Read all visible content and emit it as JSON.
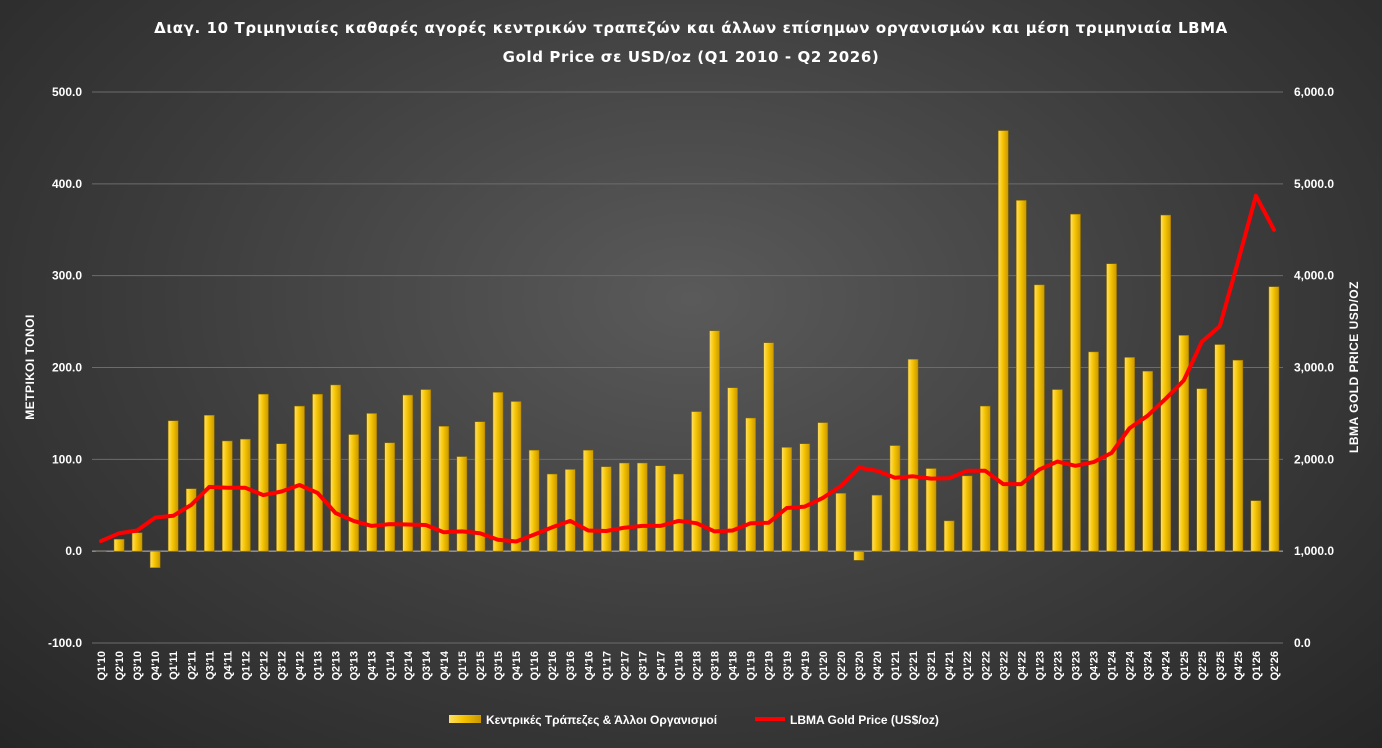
{
  "chart_data": {
    "type": "bar+line",
    "title_line1": "Διαγ. 10 Τριμηνιαίες καθαρές αγορές κεντρικών τραπεζών και άλλων επίσημων οργανισμών και μέση τριμηνιαία LBMA",
    "title_line2": "Gold Price σε USD/oz (Q1 2010 - Q2 2026)",
    "ylabel": "ΜΕΤΡΙΚΟΙ ΤΟΝΟΙ",
    "y2label": "LBMA GOLD PRICE USD/OZ",
    "ylim": [
      -100,
      500
    ],
    "y2lim": [
      0,
      6000
    ],
    "yticks": [
      "500.0",
      "400.0",
      "300.0",
      "200.0",
      "100.0",
      "0.0",
      "-100.0"
    ],
    "y2ticks": [
      "6,000.0",
      "5,000.0",
      "4,000.0",
      "3,000.0",
      "2,000.0",
      "1,000.0",
      "0.0"
    ],
    "grid": true,
    "legend_position": "bottom",
    "colors": {
      "bar": "#e8b400",
      "bar_light": "#ffe066",
      "line": "#ff0000"
    },
    "categories": [
      "Q1'10",
      "Q2'10",
      "Q3'10",
      "Q4'10",
      "Q1'11",
      "Q2'11",
      "Q3'11",
      "Q4'11",
      "Q1'12",
      "Q2'12",
      "Q3'12",
      "Q4'12",
      "Q1'13",
      "Q2'13",
      "Q3'13",
      "Q4'13",
      "Q1'14",
      "Q2'14",
      "Q3'14",
      "Q4'14",
      "Q1'15",
      "Q2'15",
      "Q3'15",
      "Q4'15",
      "Q1'16",
      "Q2'16",
      "Q3'16",
      "Q4'16",
      "Q1'17",
      "Q2'17",
      "Q3'17",
      "Q4'17",
      "Q1'18",
      "Q2'18",
      "Q3'18",
      "Q4'18",
      "Q1'19",
      "Q2'19",
      "Q3'19",
      "Q4'19",
      "Q1'20",
      "Q2'20",
      "Q3'20",
      "Q4'20",
      "Q1'21",
      "Q2'21",
      "Q3'21",
      "Q4'21",
      "Q1'22",
      "Q2'22",
      "Q3'22",
      "Q4'22",
      "Q1'23",
      "Q2'23",
      "Q3'23",
      "Q4'23",
      "Q1'24",
      "Q2'24",
      "Q3'24",
      "Q4'24",
      "Q1'25",
      "Q2'25",
      "Q3'25",
      "Q4'25",
      "Q1'26",
      "Q2'26"
    ],
    "series": [
      {
        "name": "Κεντρικές Τράπεζες & Άλλοι Οργανισμοί",
        "type": "bar",
        "axis": "left",
        "values": [
          0,
          13,
          20,
          -18,
          142,
          68,
          148,
          120,
          122,
          171,
          117,
          158,
          171,
          181,
          127,
          150,
          118,
          170,
          176,
          136,
          103,
          141,
          173,
          163,
          110,
          84,
          89,
          110,
          92,
          96,
          96,
          93,
          84,
          152,
          240,
          178,
          145,
          227,
          113,
          117,
          140,
          63,
          -10,
          61,
          115,
          209,
          90,
          33,
          82,
          158,
          458,
          382,
          290,
          176,
          367,
          217,
          313,
          211,
          196,
          366,
          235,
          177,
          225,
          208,
          55,
          288
        ]
      },
      {
        "name": "LBMA Gold Price (US$/oz)",
        "type": "line",
        "axis": "right",
        "values": [
          1110,
          1195,
          1225,
          1365,
          1385,
          1505,
          1700,
          1690,
          1690,
          1610,
          1650,
          1720,
          1635,
          1415,
          1330,
          1275,
          1295,
          1290,
          1285,
          1205,
          1215,
          1195,
          1125,
          1105,
          1180,
          1260,
          1330,
          1225,
          1220,
          1255,
          1275,
          1275,
          1330,
          1305,
          1215,
          1225,
          1305,
          1310,
          1470,
          1485,
          1580,
          1710,
          1910,
          1875,
          1800,
          1815,
          1790,
          1795,
          1875,
          1875,
          1730,
          1730,
          1890,
          1975,
          1930,
          1970,
          2070,
          2340,
          2475,
          2660,
          2860,
          3280,
          3450,
          4150,
          4870,
          4500
        ]
      }
    ]
  }
}
